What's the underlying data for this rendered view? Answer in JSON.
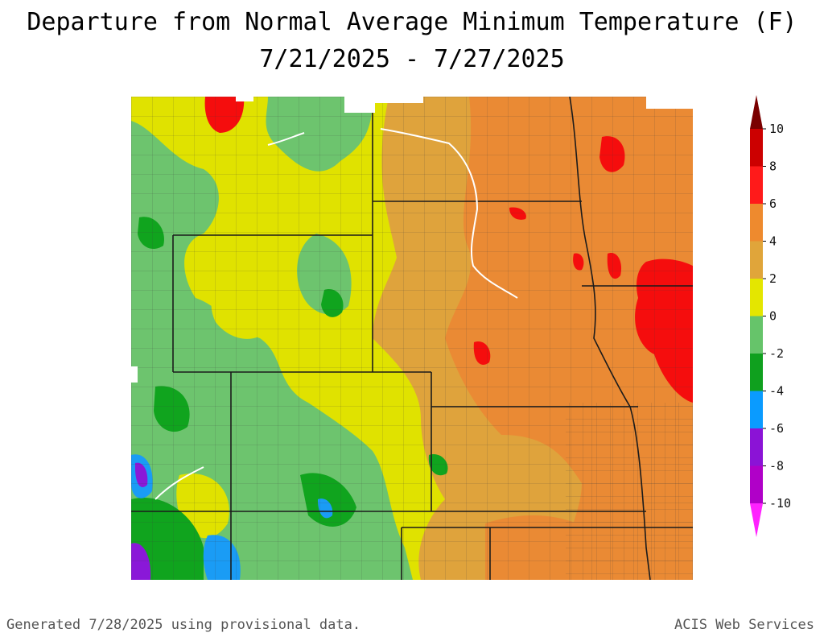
{
  "title": "Departure from Normal Average Minimum Temperature (F)",
  "subtitle": "7/21/2025 - 7/27/2025",
  "legend": {
    "labels": [
      "10",
      "8",
      "6",
      "4",
      "2",
      "0",
      "-2",
      "-4",
      "-6",
      "-8",
      "-10"
    ],
    "colors": [
      "#7a0000",
      "#cc0000",
      "#ff1a1a",
      "#ee8a2e",
      "#e0a53a",
      "#e4e600",
      "#66c46a",
      "#0fa01e",
      "#0a9bff",
      "#8b13d6",
      "#b000c8",
      "#ff22ff"
    ]
  },
  "palette": {
    "red": "#f50d0d",
    "orange": "#ea8a34",
    "lightorange": "#dfa33c",
    "yellow": "#e0e200",
    "lightgreen": "#6dc46e",
    "green": "#10a41e",
    "blue": "#1a9cf5",
    "purple": "#8a18d8",
    "boundary": "#1b1b1b",
    "county": "#3a3a3a"
  },
  "footer": {
    "left": "Generated 7/28/2025 using provisional data.",
    "right": "ACIS Web Services"
  }
}
